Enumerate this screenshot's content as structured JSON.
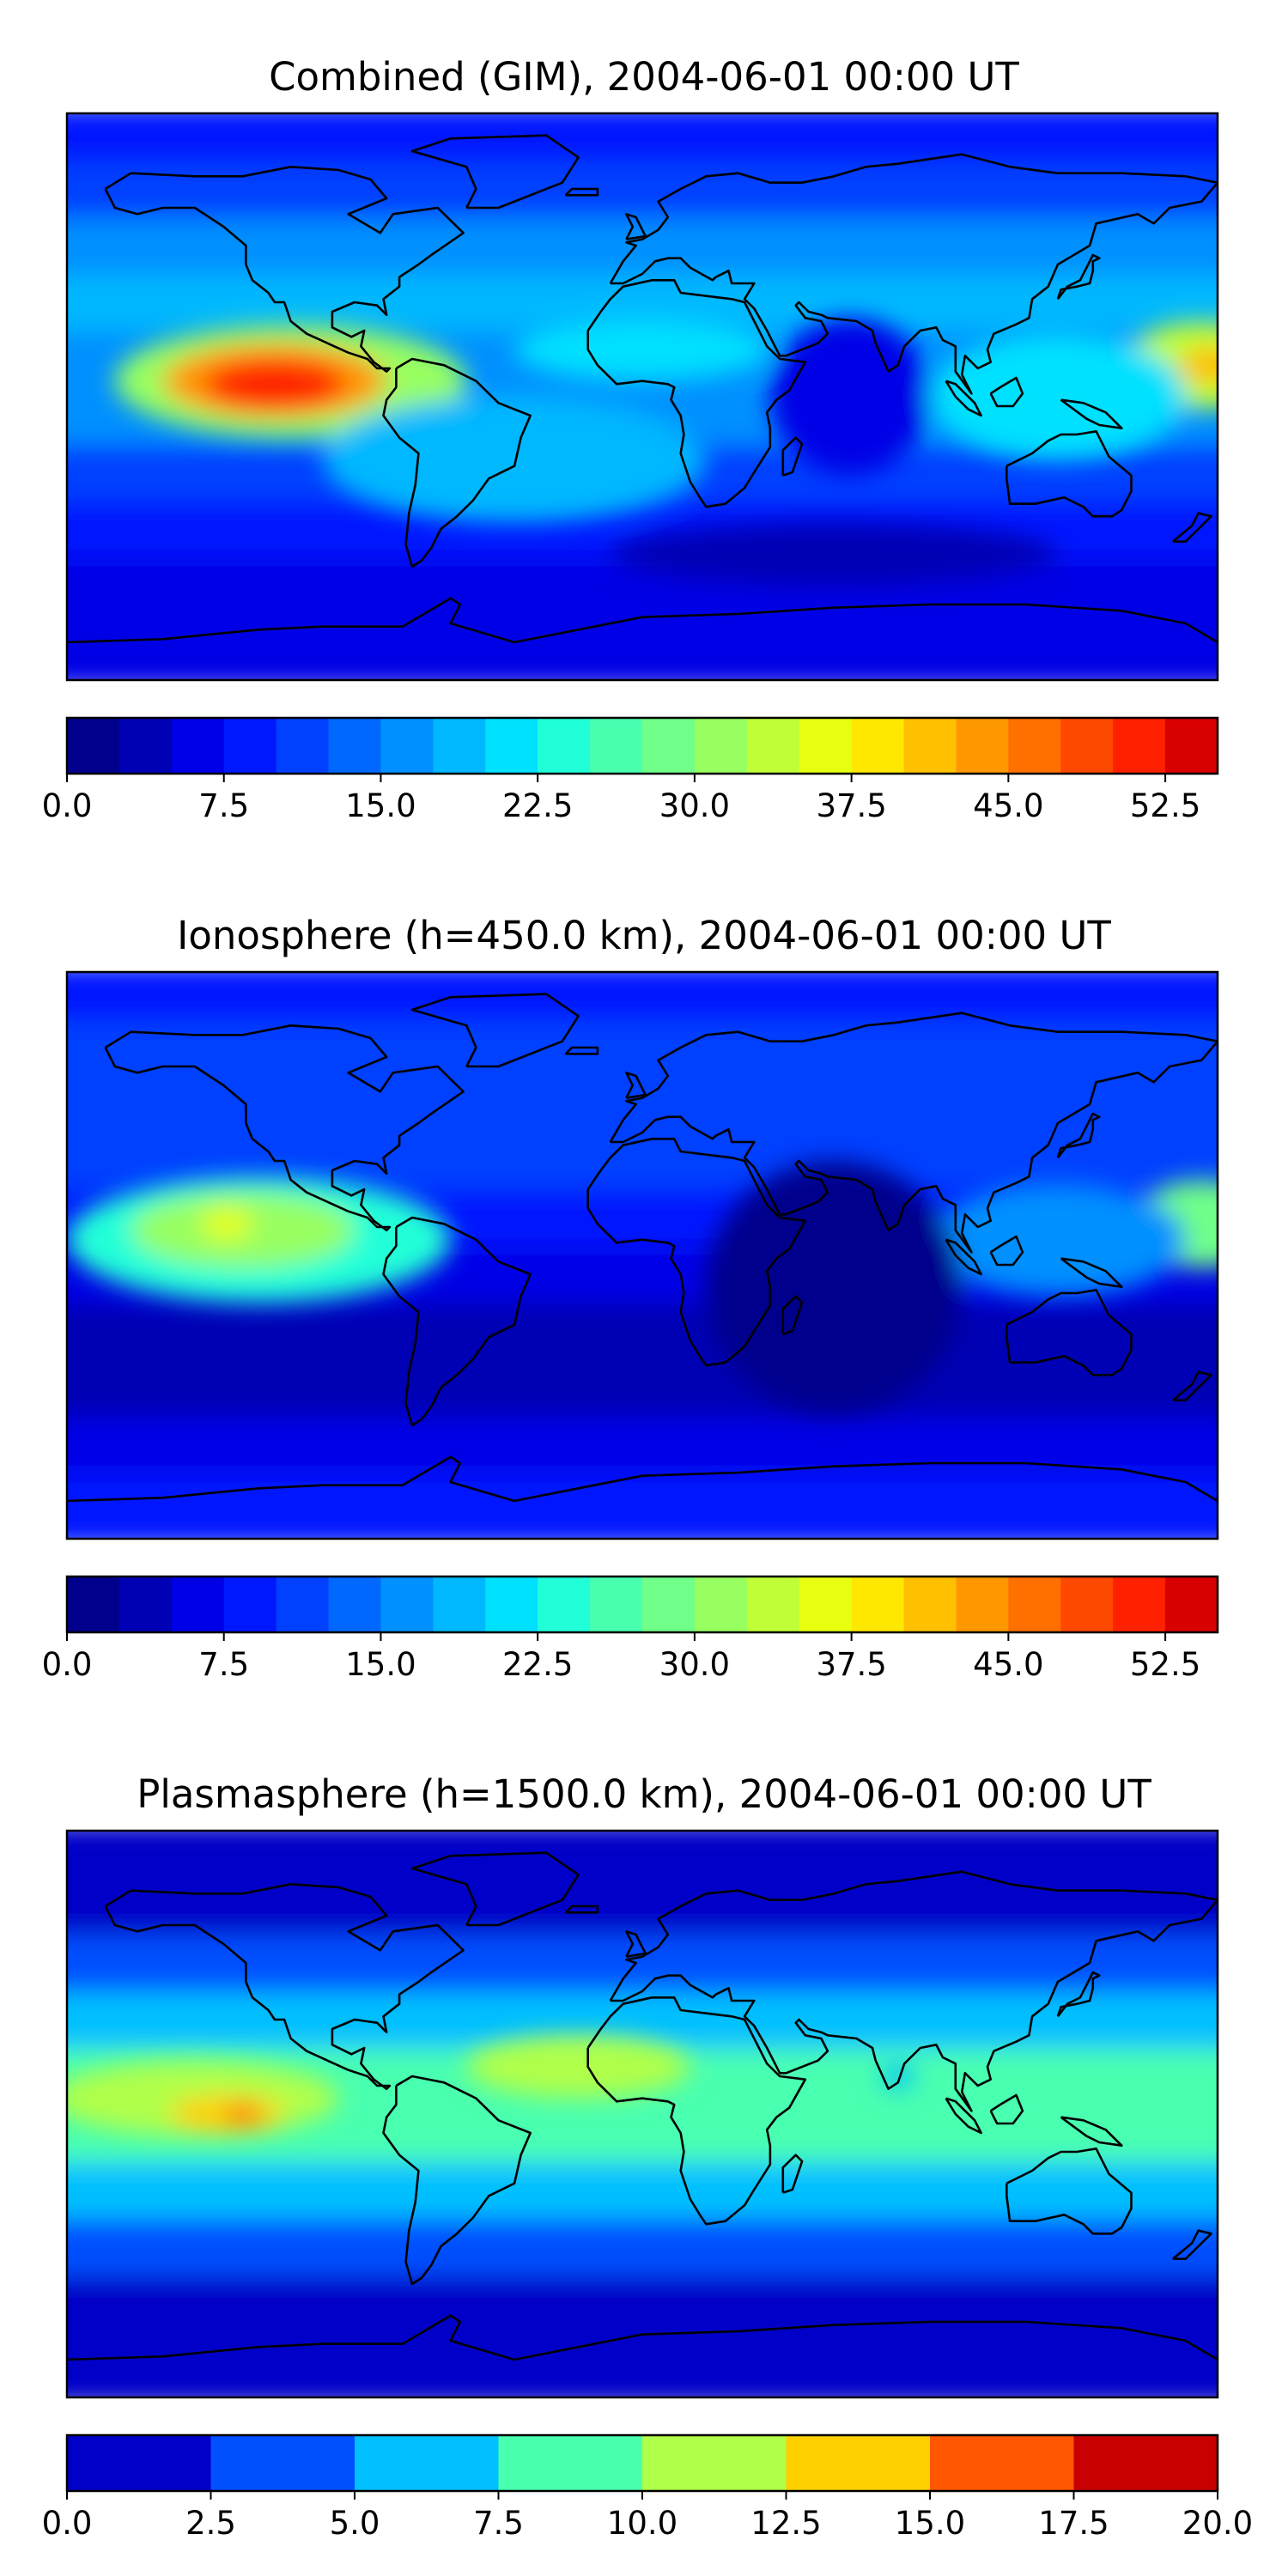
{
  "chart_data": [
    {
      "type": "heatmap",
      "title": "Combined (GIM), 2004-06-01 00:00 UT",
      "colorbar": {
        "min": 0,
        "max": 55,
        "step": 2.5,
        "ticks": [
          0.0,
          7.5,
          15.0,
          22.5,
          30.0,
          37.5,
          45.0,
          52.5
        ],
        "tick_labels": [
          "0.0",
          "7.5",
          "15.0",
          "22.5",
          "30.0",
          "37.5",
          "45.0",
          "52.5"
        ],
        "colors": [
          "#00008c",
          "#0000b4",
          "#0000e6",
          "#0018ff",
          "#0040ff",
          "#0068ff",
          "#0090ff",
          "#00b8ff",
          "#00e0ff",
          "#20ffd8",
          "#48ffb0",
          "#70ff88",
          "#98ff60",
          "#c0ff38",
          "#e8ff10",
          "#ffe800",
          "#ffc000",
          "#ff9800",
          "#ff7000",
          "#ff4800",
          "#ff2000",
          "#d80000",
          "#a00000",
          "#800000"
        ]
      },
      "blobs": [
        {
          "lon": -110,
          "lat": 5,
          "rlon": 55,
          "rlat": 18,
          "value": 30
        },
        {
          "lon": -115,
          "lat": 5,
          "rlon": 35,
          "rlat": 12,
          "value": 44
        },
        {
          "lon": -115,
          "lat": 4,
          "rlon": 22,
          "rlat": 8,
          "value": 52
        },
        {
          "lon": 175,
          "lat": 10,
          "rlon": 25,
          "rlat": 14,
          "value": 34
        },
        {
          "lon": 178,
          "lat": 10,
          "rlon": 10,
          "rlat": 6,
          "value": 42
        },
        {
          "lon": 0,
          "lat": 15,
          "rlon": 40,
          "rlat": 10,
          "value": 22
        },
        {
          "lon": 130,
          "lat": 0,
          "rlon": 40,
          "rlat": 20,
          "value": 20
        },
        {
          "lon": -40,
          "lat": -20,
          "rlon": 60,
          "rlat": 20,
          "value": 18
        },
        {
          "lon": 65,
          "lat": 0,
          "rlon": 25,
          "rlat": 25,
          "value": 5
        },
        {
          "lon": 60,
          "lat": -50,
          "rlon": 70,
          "rlat": 10,
          "value": 4
        }
      ]
    },
    {
      "type": "heatmap",
      "title": "Ionosphere  (h=450.0 km), 2004-06-01 00:00 UT",
      "colorbar": {
        "min": 0,
        "max": 55,
        "step": 2.5,
        "ticks": [
          0.0,
          7.5,
          15.0,
          22.5,
          30.0,
          37.5,
          45.0,
          52.5
        ],
        "tick_labels": [
          "0.0",
          "7.5",
          "15.0",
          "22.5",
          "30.0",
          "37.5",
          "45.0",
          "52.5"
        ],
        "colors": [
          "#00008c",
          "#0000b4",
          "#0000e6",
          "#0018ff",
          "#0040ff",
          "#0068ff",
          "#0090ff",
          "#00b8ff",
          "#00e0ff",
          "#20ffd8",
          "#48ffb0",
          "#70ff88",
          "#98ff60",
          "#c0ff38",
          "#e8ff10",
          "#ffe800",
          "#ffc000",
          "#ff9800",
          "#ff7000",
          "#ff4800",
          "#ff2000",
          "#d80000",
          "#a00000",
          "#800000"
        ]
      },
      "blobs": [
        {
          "lon": -120,
          "lat": 5,
          "rlon": 60,
          "rlat": 20,
          "value": 24
        },
        {
          "lon": -125,
          "lat": 8,
          "rlon": 35,
          "rlat": 12,
          "value": 32
        },
        {
          "lon": -130,
          "lat": 10,
          "rlon": 8,
          "rlat": 5,
          "value": 36
        },
        {
          "lon": 175,
          "lat": 10,
          "rlon": 22,
          "rlat": 14,
          "value": 28
        },
        {
          "lon": 130,
          "lat": 5,
          "rlon": 40,
          "rlat": 18,
          "value": 17
        },
        {
          "lon": 60,
          "lat": -10,
          "rlon": 40,
          "rlat": 40,
          "value": 2
        }
      ]
    },
    {
      "type": "heatmap",
      "title": "Plasmasphere (h=1500.0 km), 2004-06-01 00:00 UT",
      "colorbar": {
        "min": 0,
        "max": 20,
        "step": 2.5,
        "ticks": [
          0.0,
          2.5,
          5.0,
          7.5,
          10.0,
          12.5,
          15.0,
          17.5,
          20.0
        ],
        "tick_labels": [
          "0.0",
          "2.5",
          "5.0",
          "7.5",
          "10.0",
          "12.5",
          "15.0",
          "17.5",
          "20.0"
        ],
        "colors": [
          "#0000c8",
          "#0050ff",
          "#00c0ff",
          "#48ffb0",
          "#b0ff48",
          "#ffd000",
          "#ff5800",
          "#c80000"
        ]
      },
      "blobs": [
        {
          "lon": -140,
          "lat": 5,
          "rlon": 45,
          "rlat": 12,
          "value": 12
        },
        {
          "lon": -130,
          "lat": 0,
          "rlon": 18,
          "rlat": 6,
          "value": 14
        },
        {
          "lon": -125,
          "lat": 0,
          "rlon": 5,
          "rlat": 3,
          "value": 16
        },
        {
          "lon": -20,
          "lat": 15,
          "rlon": 35,
          "rlat": 10,
          "value": 10.5
        },
        {
          "lon": 80,
          "lat": 12,
          "rlon": 5,
          "rlat": 4,
          "value": 5
        }
      ]
    }
  ]
}
